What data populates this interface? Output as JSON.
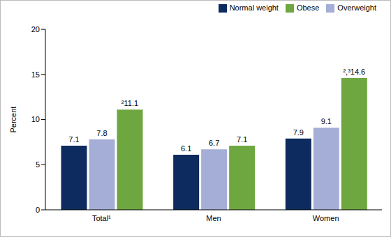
{
  "chart_data": {
    "type": "bar",
    "categories": [
      "Total¹",
      "Men",
      "Women"
    ],
    "y_label": "Percent",
    "series": [
      {
        "name": "Normal weight",
        "color": "#0d2b5e",
        "values": [
          7.1,
          6.1,
          7.9
        ]
      },
      {
        "name": "Overweight",
        "color": "#a4aed6",
        "values": [
          7.8,
          6.7,
          9.1
        ]
      },
      {
        "name": "Obese",
        "color": "#6ea640",
        "values": [
          11.1,
          7.1,
          14.6
        ],
        "value_labels": [
          "²11.1",
          "7.1",
          "²,³14.6"
        ]
      }
    ],
    "ylim": [
      0,
      20
    ],
    "yticks": [
      0,
      5,
      10,
      15,
      20
    ],
    "grid": false,
    "legend": "top right",
    "data_labels": true
  }
}
